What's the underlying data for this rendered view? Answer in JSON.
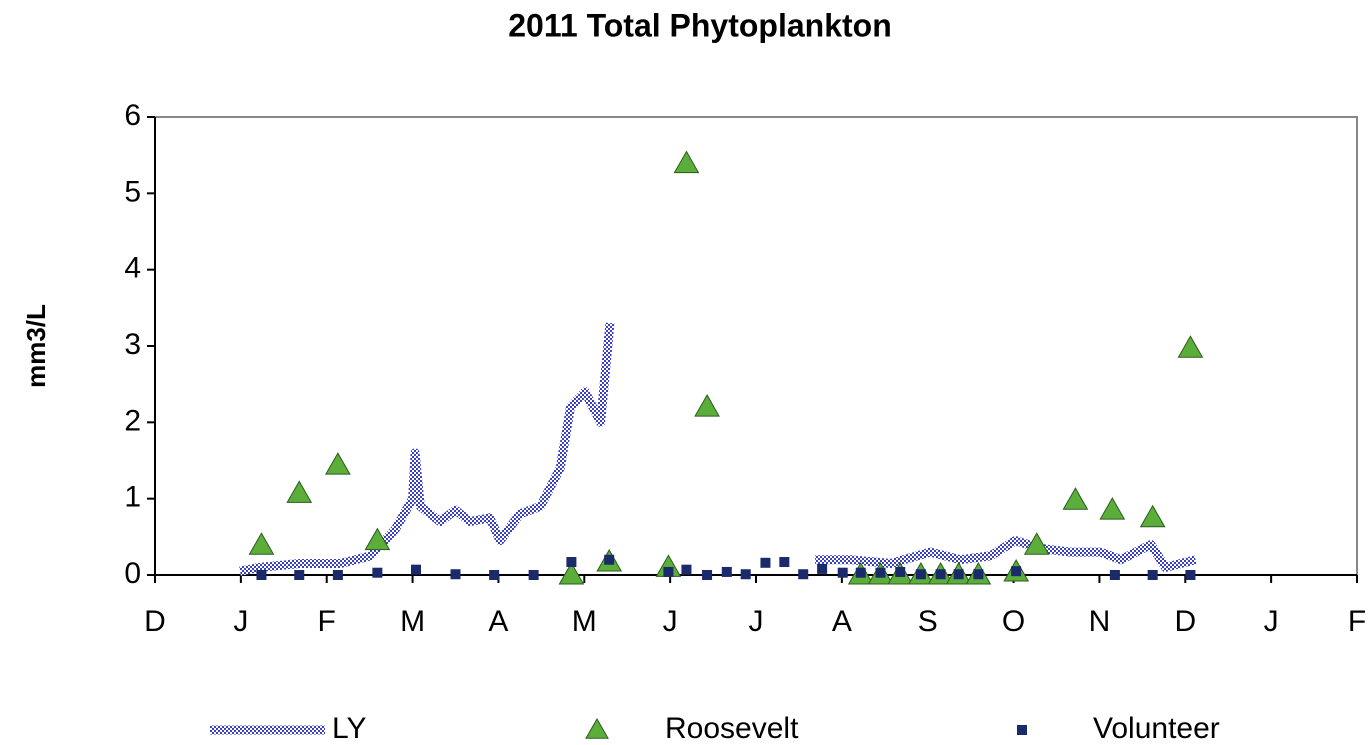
{
  "chart_data": {
    "type": "scatter",
    "title": "2011 Total Phytoplankton",
    "ylabel": "mm3/L",
    "xlim": [
      0,
      14
    ],
    "xticks": [
      {
        "value": 0,
        "label": "D"
      },
      {
        "value": 1,
        "label": "J"
      },
      {
        "value": 2,
        "label": "F"
      },
      {
        "value": 3,
        "label": "M"
      },
      {
        "value": 4,
        "label": "A"
      },
      {
        "value": 5,
        "label": "M"
      },
      {
        "value": 6,
        "label": "J"
      },
      {
        "value": 7,
        "label": "J"
      },
      {
        "value": 8,
        "label": "A"
      },
      {
        "value": 9,
        "label": "S"
      },
      {
        "value": 10,
        "label": "O"
      },
      {
        "value": 11,
        "label": "N"
      },
      {
        "value": 12,
        "label": "D"
      },
      {
        "value": 13,
        "label": "J"
      },
      {
        "value": 14,
        "label": "F"
      }
    ],
    "ylim": [
      0,
      6
    ],
    "yticks": [
      0,
      1,
      2,
      3,
      4,
      5,
      6
    ],
    "series": [
      {
        "name": "LY",
        "type": "line",
        "color": "#3a40c0",
        "x": [
          0.99,
          1.22,
          1.69,
          2.16,
          2.51,
          2.8,
          3.0,
          3.03,
          3.09,
          3.32,
          3.5,
          3.67,
          3.9,
          4.02,
          4.25,
          4.49,
          4.72,
          4.84,
          5.01,
          5.19,
          5.3,
          6.5,
          7.69,
          8.1,
          8.57,
          9.03,
          9.38,
          9.73,
          10.02,
          10.31,
          10.66,
          11.01,
          11.25,
          11.6,
          11.77,
          12.12
        ],
        "values": [
          0.05,
          0.1,
          0.15,
          0.15,
          0.25,
          0.6,
          1.0,
          1.6,
          0.9,
          0.7,
          0.85,
          0.7,
          0.75,
          0.45,
          0.8,
          0.9,
          1.4,
          2.2,
          2.4,
          2.0,
          3.3,
          null,
          0.2,
          0.2,
          0.15,
          0.3,
          0.2,
          0.25,
          0.45,
          0.35,
          0.3,
          0.3,
          0.2,
          0.4,
          0.1,
          0.2
        ]
      },
      {
        "name": "Roosevelt",
        "type": "triangle",
        "color": "#5cae3a",
        "x": [
          1.24,
          1.68,
          2.13,
          2.59,
          4.85,
          5.29,
          5.98,
          6.19,
          6.43,
          8.22,
          8.45,
          8.68,
          8.92,
          9.15,
          9.36,
          9.59,
          10.03,
          10.27,
          10.72,
          11.15,
          11.62,
          12.06
        ],
        "values": [
          0.39,
          1.07,
          1.44,
          0.45,
          0,
          0.17,
          0.1,
          5.39,
          2.2,
          0,
          0,
          0,
          0,
          0,
          0,
          0,
          0.04,
          0.39,
          0.98,
          0.85,
          0.75,
          2.97
        ]
      },
      {
        "name": "Volunteer",
        "type": "square",
        "color": "#1a2a6a",
        "x": [
          1.24,
          1.68,
          2.13,
          2.59,
          3.04,
          3.5,
          3.95,
          4.41,
          4.85,
          5.29,
          5.98,
          6.19,
          6.43,
          6.66,
          6.88,
          7.11,
          7.33,
          7.55,
          7.77,
          8.01,
          8.22,
          8.45,
          8.68,
          8.92,
          9.15,
          9.36,
          9.59,
          10.03,
          11.18,
          11.62,
          12.06
        ],
        "values": [
          0,
          0,
          0,
          0.03,
          0.07,
          0.01,
          0,
          0,
          0.17,
          0.2,
          0.04,
          0.07,
          0,
          0.04,
          0.01,
          0.16,
          0.17,
          0.01,
          0.08,
          0.03,
          0.03,
          0.03,
          0.04,
          0.01,
          0.01,
          0.01,
          0.01,
          0.05,
          0,
          0,
          0
        ]
      }
    ]
  }
}
